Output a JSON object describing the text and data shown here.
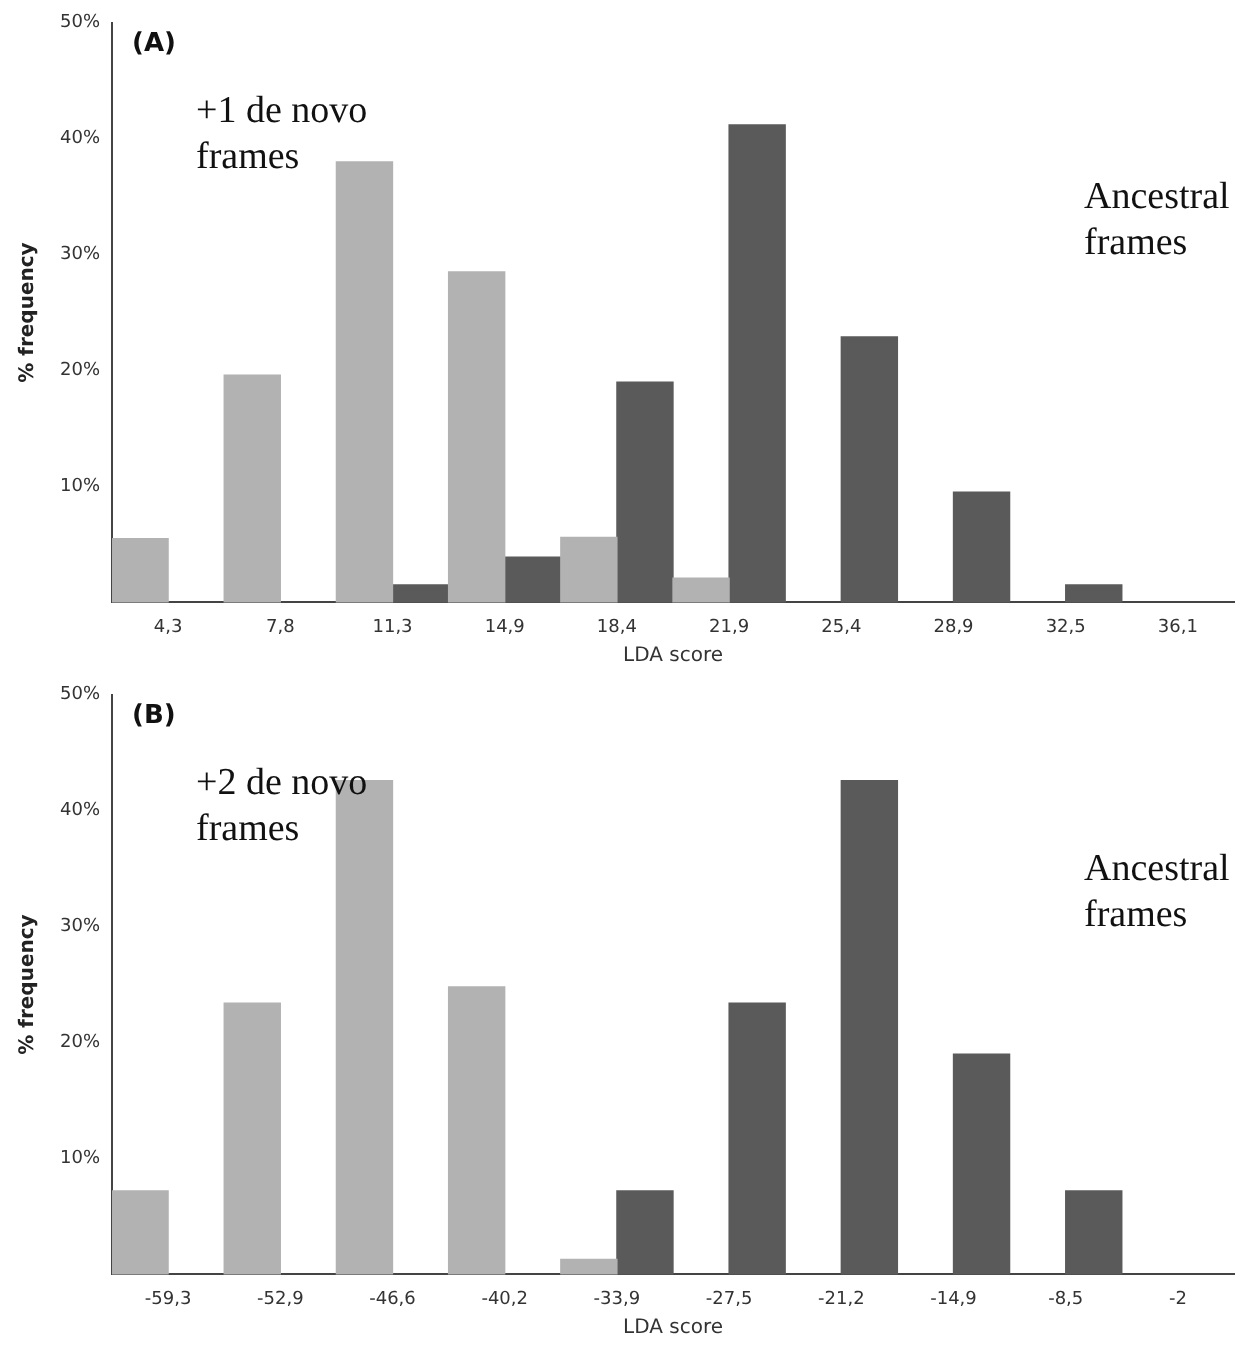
{
  "chart_data": [
    {
      "type": "bar",
      "categories": [
        "4,3",
        "7,8",
        "11,3",
        "14,9",
        "18,4",
        "21,9",
        "25,4",
        "28,9",
        "32,5",
        "36,1"
      ],
      "series": [
        {
          "color": "#b2b2b2",
          "values": [
            5.5,
            19.6,
            38.0,
            28.5,
            5.6,
            2.1,
            null,
            null,
            null,
            null
          ]
        },
        {
          "color": "#5a5a5a",
          "values": [
            null,
            null,
            1.5,
            3.9,
            19.0,
            41.2,
            22.9,
            9.5,
            1.5,
            null
          ]
        }
      ],
      "xlabel": "LDA score",
      "ylabel": "% frequency",
      "ylim": [
        0,
        50
      ],
      "yticks": [
        {
          "value": 10,
          "label": "10%"
        },
        {
          "value": 20,
          "label": "20%"
        },
        {
          "value": 30,
          "label": "30%"
        },
        {
          "value": 40,
          "label": "40%"
        },
        {
          "value": 50,
          "label": "50%"
        }
      ],
      "grid": false,
      "annotations": [
        "(A)",
        "+1 de novo frames",
        "Ancestral frames"
      ]
    },
    {
      "type": "bar",
      "categories": [
        "-59,3",
        "-52,9",
        "-46,6",
        "-40,2",
        "-33,9",
        "-27,5",
        "-21,2",
        "-14,9",
        "-8,5",
        "-2"
      ],
      "series": [
        {
          "color": "#b2b2b2",
          "values": [
            7.2,
            23.4,
            42.6,
            24.8,
            1.3,
            null,
            null,
            null,
            null,
            null
          ]
        },
        {
          "color": "#5a5a5a",
          "values": [
            null,
            null,
            null,
            null,
            7.2,
            23.4,
            42.6,
            19.0,
            7.2,
            null
          ]
        }
      ],
      "xlabel": "LDA score",
      "ylabel": "% frequency",
      "ylim": [
        0,
        50
      ],
      "yticks": [
        {
          "value": 10,
          "label": "10%"
        },
        {
          "value": 20,
          "label": "20%"
        },
        {
          "value": 30,
          "label": "30%"
        },
        {
          "value": 40,
          "label": "40%"
        },
        {
          "value": 50,
          "label": "50%"
        }
      ],
      "grid": false,
      "annotations": [
        "(B)",
        "+2 de novo frames",
        "Ancestral frames"
      ]
    }
  ]
}
